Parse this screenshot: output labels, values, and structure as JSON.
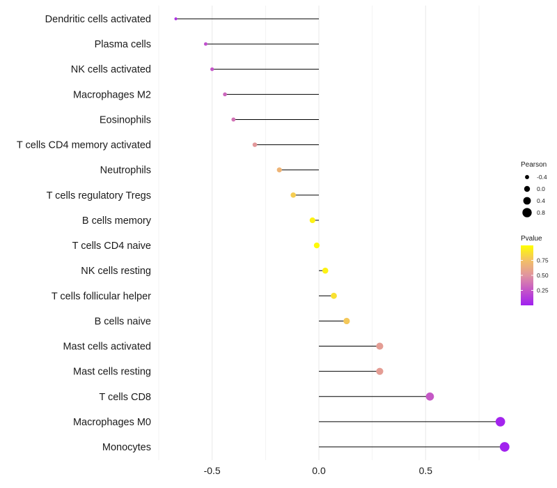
{
  "chart_data": {
    "type": "lollipop",
    "title": "",
    "xlabel": "",
    "ylabel": "",
    "xlim": [
      -0.75,
      0.9
    ],
    "x_ticks": [
      -0.5,
      0.0,
      0.5
    ],
    "x_tick_labels": [
      "-0.5",
      "0.0",
      "0.5"
    ],
    "grid": true,
    "series": [
      {
        "category": "Dendritic cells activated",
        "pearson": -0.67,
        "pvalue": 0.09
      },
      {
        "category": "Plasma cells",
        "pearson": -0.53,
        "pvalue": 0.22
      },
      {
        "category": "NK cells activated",
        "pearson": -0.5,
        "pvalue": 0.25
      },
      {
        "category": "Macrophages M2",
        "pearson": -0.44,
        "pvalue": 0.32
      },
      {
        "category": "Eosinophils",
        "pearson": -0.4,
        "pvalue": 0.37
      },
      {
        "category": "T cells CD4 memory activated",
        "pearson": -0.3,
        "pvalue": 0.52
      },
      {
        "category": "Neutrophils",
        "pearson": -0.185,
        "pvalue": 0.68
      },
      {
        "category": "T cells regulatory  Tregs",
        "pearson": -0.12,
        "pvalue": 0.8
      },
      {
        "category": "B cells memory",
        "pearson": -0.03,
        "pvalue": 0.95
      },
      {
        "category": "T cells CD4 naive",
        "pearson": -0.01,
        "pvalue": 0.98
      },
      {
        "category": "NK cells resting",
        "pearson": 0.03,
        "pvalue": 0.95
      },
      {
        "category": "T cells follicular helper",
        "pearson": 0.07,
        "pvalue": 0.88
      },
      {
        "category": "B cells naive",
        "pearson": 0.13,
        "pvalue": 0.78
      },
      {
        "category": "Mast cells activated",
        "pearson": 0.285,
        "pvalue": 0.55
      },
      {
        "category": "Mast cells resting",
        "pearson": 0.285,
        "pvalue": 0.55
      },
      {
        "category": "T cells CD8",
        "pearson": 0.52,
        "pvalue": 0.26
      },
      {
        "category": "Macrophages M0",
        "pearson": 0.85,
        "pvalue": 0.02
      },
      {
        "category": "Monocytes",
        "pearson": 0.87,
        "pvalue": 0.01
      }
    ],
    "size_legend": {
      "title": "Pearson",
      "entries": [
        {
          "label": "-0.4",
          "value": -0.4
        },
        {
          "label": "0.0",
          "value": 0.0
        },
        {
          "label": "0.4",
          "value": 0.4
        },
        {
          "label": "0.8",
          "value": 0.8
        }
      ]
    },
    "color_legend": {
      "title": "Pvalue",
      "ticks": [
        {
          "label": "0.75",
          "value": 0.75
        },
        {
          "label": "0.50",
          "value": 0.5
        },
        {
          "label": "0.25",
          "value": 0.25
        }
      ],
      "range": [
        0.0,
        1.0
      ],
      "low_color": "#a020f0",
      "high_color": "#ffff00"
    },
    "colors": {
      "segment": "#000000",
      "gridline": "#ebebeb"
    }
  }
}
